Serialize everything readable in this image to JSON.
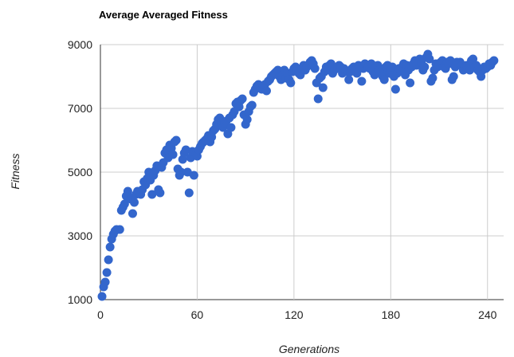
{
  "chart_data": {
    "type": "scatter",
    "title": "Average Averaged Fitness",
    "xlabel": "Generations",
    "ylabel": "Fitness",
    "xlim": [
      0,
      250
    ],
    "ylim": [
      1000,
      9000
    ],
    "x_ticks": [
      0,
      60,
      120,
      180,
      240
    ],
    "y_ticks": [
      1000,
      3000,
      5000,
      7000,
      9000
    ],
    "grid": true,
    "legend": "none",
    "colors": {
      "series": "#3366cc"
    },
    "series": [
      {
        "points": [
          [
            1,
            1100
          ],
          [
            2,
            1400
          ],
          [
            3,
            1550
          ],
          [
            4,
            1850
          ],
          [
            5,
            2250
          ],
          [
            6,
            2650
          ],
          [
            7,
            2900
          ],
          [
            8,
            3050
          ],
          [
            9,
            3150
          ],
          [
            10,
            3200
          ],
          [
            12,
            3200
          ],
          [
            13,
            3800
          ],
          [
            14,
            3900
          ],
          [
            15,
            4000
          ],
          [
            16,
            4250
          ],
          [
            17,
            4400
          ],
          [
            18,
            4200
          ],
          [
            19,
            4150
          ],
          [
            20,
            3700
          ],
          [
            21,
            4050
          ],
          [
            22,
            4300
          ],
          [
            23,
            4400
          ],
          [
            24,
            4350
          ],
          [
            25,
            4300
          ],
          [
            26,
            4450
          ],
          [
            27,
            4700
          ],
          [
            28,
            4600
          ],
          [
            29,
            4800
          ],
          [
            30,
            5000
          ],
          [
            31,
            4750
          ],
          [
            32,
            4300
          ],
          [
            33,
            4900
          ],
          [
            34,
            5050
          ],
          [
            35,
            5200
          ],
          [
            36,
            4450
          ],
          [
            37,
            4350
          ],
          [
            38,
            5150
          ],
          [
            39,
            5300
          ],
          [
            40,
            5600
          ],
          [
            41,
            5700
          ],
          [
            42,
            5450
          ],
          [
            43,
            5850
          ],
          [
            44,
            5750
          ],
          [
            45,
            5550
          ],
          [
            46,
            5950
          ],
          [
            47,
            6000
          ],
          [
            48,
            5100
          ],
          [
            49,
            4900
          ],
          [
            50,
            5000
          ],
          [
            51,
            5400
          ],
          [
            52,
            5600
          ],
          [
            53,
            5700
          ],
          [
            54,
            5000
          ],
          [
            55,
            4350
          ],
          [
            56,
            5450
          ],
          [
            57,
            5650
          ],
          [
            58,
            4900
          ],
          [
            59,
            5550
          ],
          [
            60,
            5500
          ],
          [
            61,
            5700
          ],
          [
            62,
            5800
          ],
          [
            63,
            5900
          ],
          [
            64,
            5950
          ],
          [
            65,
            6000
          ],
          [
            66,
            6050
          ],
          [
            67,
            6150
          ],
          [
            68,
            5950
          ],
          [
            69,
            6100
          ],
          [
            70,
            6300
          ],
          [
            71,
            6350
          ],
          [
            72,
            6500
          ],
          [
            73,
            6650
          ],
          [
            74,
            6700
          ],
          [
            75,
            6550
          ],
          [
            76,
            6400
          ],
          [
            77,
            6550
          ],
          [
            78,
            6600
          ],
          [
            79,
            6200
          ],
          [
            80,
            6700
          ],
          [
            81,
            6400
          ],
          [
            82,
            6800
          ],
          [
            83,
            6900
          ],
          [
            84,
            7150
          ],
          [
            85,
            7200
          ],
          [
            86,
            7050
          ],
          [
            87,
            7250
          ],
          [
            88,
            7300
          ],
          [
            89,
            6800
          ],
          [
            90,
            6500
          ],
          [
            91,
            6650
          ],
          [
            92,
            6900
          ],
          [
            93,
            7050
          ],
          [
            94,
            7100
          ],
          [
            95,
            7500
          ],
          [
            96,
            7600
          ],
          [
            97,
            7700
          ],
          [
            98,
            7750
          ],
          [
            99,
            7650
          ],
          [
            100,
            7600
          ],
          [
            101,
            7700
          ],
          [
            102,
            7750
          ],
          [
            103,
            7550
          ],
          [
            104,
            7850
          ],
          [
            105,
            7900
          ],
          [
            106,
            8000
          ],
          [
            107,
            8050
          ],
          [
            108,
            8100
          ],
          [
            109,
            8150
          ],
          [
            110,
            8200
          ],
          [
            111,
            8000
          ],
          [
            112,
            7900
          ],
          [
            113,
            8050
          ],
          [
            114,
            8200
          ],
          [
            115,
            7950
          ],
          [
            116,
            8100
          ],
          [
            117,
            7900
          ],
          [
            118,
            7800
          ],
          [
            119,
            8150
          ],
          [
            120,
            8250
          ],
          [
            121,
            8300
          ],
          [
            122,
            8200
          ],
          [
            123,
            8100
          ],
          [
            124,
            8050
          ],
          [
            125,
            8250
          ],
          [
            126,
            8350
          ],
          [
            127,
            8200
          ],
          [
            128,
            8300
          ],
          [
            129,
            8350
          ],
          [
            130,
            8450
          ],
          [
            131,
            8500
          ],
          [
            132,
            8400
          ],
          [
            133,
            8250
          ],
          [
            134,
            7800
          ],
          [
            135,
            7300
          ],
          [
            136,
            7950
          ],
          [
            137,
            8000
          ],
          [
            138,
            7650
          ],
          [
            139,
            8150
          ],
          [
            140,
            8300
          ],
          [
            141,
            8250
          ],
          [
            142,
            8350
          ],
          [
            143,
            8400
          ],
          [
            144,
            8100
          ],
          [
            145,
            8200
          ],
          [
            146,
            8250
          ],
          [
            147,
            8300
          ],
          [
            148,
            8350
          ],
          [
            149,
            8300
          ],
          [
            150,
            8100
          ],
          [
            151,
            8250
          ],
          [
            152,
            8200
          ],
          [
            153,
            8150
          ],
          [
            154,
            7900
          ],
          [
            155,
            8150
          ],
          [
            156,
            8250
          ],
          [
            157,
            8300
          ],
          [
            158,
            8200
          ],
          [
            159,
            8100
          ],
          [
            160,
            8350
          ],
          [
            161,
            8300
          ],
          [
            162,
            7850
          ],
          [
            163,
            8250
          ],
          [
            164,
            8400
          ],
          [
            165,
            8350
          ],
          [
            166,
            8300
          ],
          [
            167,
            8250
          ],
          [
            168,
            8400
          ],
          [
            169,
            8150
          ],
          [
            170,
            8050
          ],
          [
            171,
            8300
          ],
          [
            172,
            8350
          ],
          [
            173,
            8200
          ],
          [
            174,
            8150
          ],
          [
            175,
            8000
          ],
          [
            176,
            7900
          ],
          [
            177,
            8300
          ],
          [
            178,
            8350
          ],
          [
            179,
            8100
          ],
          [
            180,
            8200
          ],
          [
            181,
            8300
          ],
          [
            182,
            8000
          ],
          [
            183,
            7600
          ],
          [
            184,
            8100
          ],
          [
            185,
            8250
          ],
          [
            186,
            8200
          ],
          [
            187,
            8300
          ],
          [
            188,
            8400
          ],
          [
            189,
            8050
          ],
          [
            190,
            8350
          ],
          [
            191,
            8200
          ],
          [
            192,
            7800
          ],
          [
            193,
            8300
          ],
          [
            194,
            8400
          ],
          [
            195,
            8500
          ],
          [
            196,
            8350
          ],
          [
            197,
            8450
          ],
          [
            198,
            8550
          ],
          [
            199,
            8450
          ],
          [
            200,
            8200
          ],
          [
            201,
            8300
          ],
          [
            202,
            8600
          ],
          [
            203,
            8700
          ],
          [
            204,
            8550
          ],
          [
            205,
            7850
          ],
          [
            206,
            7950
          ],
          [
            207,
            8200
          ],
          [
            208,
            8400
          ],
          [
            209,
            8300
          ],
          [
            210,
            8350
          ],
          [
            211,
            8450
          ],
          [
            212,
            8500
          ],
          [
            213,
            8300
          ],
          [
            214,
            8250
          ],
          [
            215,
            8450
          ],
          [
            216,
            8400
          ],
          [
            217,
            8500
          ],
          [
            218,
            7900
          ],
          [
            219,
            8000
          ],
          [
            220,
            8300
          ],
          [
            221,
            8450
          ],
          [
            222,
            8400
          ],
          [
            223,
            8450
          ],
          [
            224,
            8350
          ],
          [
            225,
            8200
          ],
          [
            226,
            8300
          ],
          [
            227,
            8350
          ],
          [
            228,
            8250
          ],
          [
            229,
            8200
          ],
          [
            230,
            8500
          ],
          [
            231,
            8550
          ],
          [
            232,
            8300
          ],
          [
            233,
            8350
          ],
          [
            234,
            8200
          ],
          [
            235,
            8150
          ],
          [
            236,
            8000
          ],
          [
            237,
            8200
          ],
          [
            238,
            8300
          ],
          [
            239,
            8250
          ],
          [
            240,
            8300
          ],
          [
            241,
            8400
          ],
          [
            242,
            8350
          ],
          [
            243,
            8450
          ],
          [
            244,
            8500
          ]
        ]
      }
    ]
  }
}
